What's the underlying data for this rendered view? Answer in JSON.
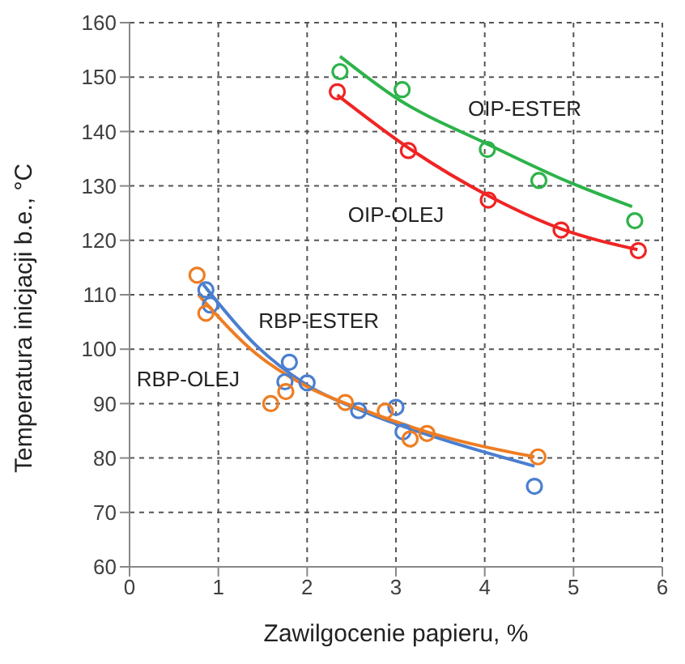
{
  "chart_data": {
    "type": "scatter",
    "xlabel": "Zawilgocenie papieru, %",
    "ylabel": "Temperatura inicjacji b.e., °C",
    "xlim": [
      0,
      6
    ],
    "xticks": [
      0,
      1,
      2,
      3,
      4,
      5,
      6
    ],
    "ylim": [
      60,
      160
    ],
    "yticks": [
      60,
      70,
      80,
      90,
      100,
      110,
      120,
      130,
      140,
      150,
      160
    ],
    "grid": true,
    "legend": false,
    "marker": "circle",
    "series": [
      {
        "name": "OIP-ESTER",
        "color": "#2db34a",
        "x": [
          2.37,
          3.07,
          4.03,
          4.61,
          5.69
        ],
        "values": [
          151,
          147.7,
          136.7,
          131,
          123.6
        ]
      },
      {
        "name": "OIP-OLEJ",
        "color": "#f02424",
        "x": [
          2.34,
          3.14,
          4.04,
          4.86,
          5.73
        ],
        "values": [
          147.3,
          136.5,
          127.4,
          121.9,
          118.1
        ]
      },
      {
        "name": "RBP-ESTER",
        "color": "#4a7fd0",
        "x": [
          0.86,
          0.91,
          1.75,
          1.8,
          2,
          2.58,
          3,
          3.08,
          4.56
        ],
        "values": [
          110.9,
          108.1,
          94,
          97.6,
          93.8,
          88.7,
          89.3,
          84.8,
          74.8
        ]
      },
      {
        "name": "RBP-OLEJ",
        "color": "#ee7d22",
        "x": [
          0.76,
          0.86,
          1.59,
          1.76,
          2.43,
          2.88,
          3.16,
          3.35,
          4.6
        ],
        "values": [
          113.6,
          106.6,
          90,
          92.2,
          90.2,
          88.6,
          83.5,
          84.5,
          80.2
        ]
      },
      {
        "type": "line",
        "marker": "none",
        "color": "#2db34a",
        "x": [
          2.37,
          3,
          4.03,
          4.95,
          5.66
        ],
        "values": [
          153.8,
          146.2,
          137.7,
          130.7,
          126.2
        ]
      },
      {
        "type": "line",
        "marker": "none",
        "color": "#f02424",
        "x": [
          2.34,
          3.14,
          4.04,
          4.86,
          5.72
        ],
        "values": [
          146.7,
          137,
          128.2,
          122.1,
          118.3
        ]
      },
      {
        "type": "line",
        "marker": "none",
        "color": "#4a7fd0",
        "x": [
          0.83,
          1.43,
          1.99,
          2.64,
          3.41,
          4.56
        ],
        "values": [
          111.9,
          100.6,
          93.5,
          88.5,
          84,
          78.5
        ]
      },
      {
        "type": "line",
        "marker": "none",
        "color": "#ee7d22",
        "x": [
          0.78,
          1.43,
          1.99,
          2.64,
          3.41,
          4.56
        ],
        "values": [
          109.9,
          99.1,
          93.2,
          88.8,
          84.5,
          80.2
        ]
      }
    ]
  }
}
